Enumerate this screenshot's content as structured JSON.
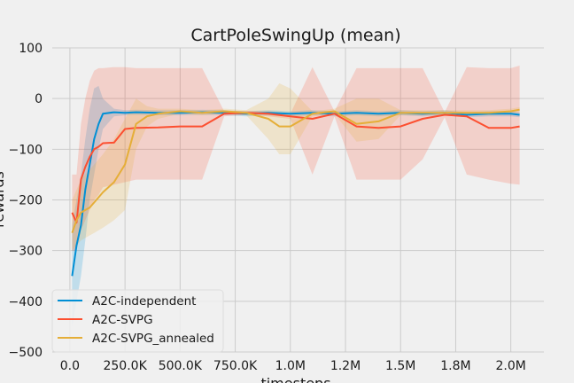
{
  "chart_data": {
    "type": "line",
    "title": "CartPoleSwingUp (mean)",
    "xlabel": "timesteps",
    "ylabel": "rewards",
    "xlim": [
      -80000,
      2150000
    ],
    "ylim": [
      -500,
      100
    ],
    "xticks": [
      0,
      250000,
      500000,
      750000,
      1000000,
      1250000,
      1500000,
      1750000,
      2000000
    ],
    "xtick_labels": [
      "0.0",
      "250.0K",
      "500.0K",
      "750.0K",
      "1.0M",
      "1.2M",
      "1.5M",
      "1.8M",
      "2.0M"
    ],
    "yticks": [
      100,
      0,
      -100,
      -200,
      -300,
      -400,
      -500
    ],
    "ytick_labels": [
      "100",
      "0",
      "−100",
      "−200",
      "−300",
      "−400",
      "−500"
    ],
    "grid": true,
    "legend_position": "lower-left",
    "series": [
      {
        "name": "A2C-independent",
        "color": "#008fd5",
        "x": [
          10000,
          30000,
          50000,
          70000,
          90000,
          110000,
          130000,
          150000,
          200000,
          250000,
          300000,
          400000,
          500000,
          600000,
          700000,
          800000,
          900000,
          1000000,
          1100000,
          1200000,
          1300000,
          1400000,
          1500000,
          1600000,
          1700000,
          1800000,
          1900000,
          2000000,
          2040000
        ],
        "y": [
          -350,
          -290,
          -250,
          -180,
          -130,
          -80,
          -50,
          -30,
          -27,
          -28,
          -27,
          -28,
          -28,
          -27,
          -28,
          -30,
          -28,
          -30,
          -28,
          -30,
          -28,
          -30,
          -28,
          -30,
          -28,
          -32,
          -30,
          -30,
          -32
        ],
        "lower": [
          -450,
          -400,
          -350,
          -280,
          -200,
          -150,
          -100,
          -60,
          -35,
          -33,
          -32,
          -33,
          -33,
          -32,
          -33,
          -35,
          -33,
          -35,
          -33,
          -35,
          -33,
          -35,
          -33,
          -35,
          -33,
          -37,
          -35,
          -35,
          -37
        ],
        "upper": [
          -250,
          -200,
          -150,
          -80,
          -20,
          20,
          25,
          0,
          -20,
          -23,
          -22,
          -23,
          -23,
          -22,
          -23,
          -25,
          -23,
          -25,
          -23,
          -25,
          -23,
          -25,
          -23,
          -25,
          -23,
          -27,
          -25,
          -25,
          -27
        ]
      },
      {
        "name": "A2C-SVPG",
        "color": "#fc4f30",
        "x": [
          10000,
          30000,
          50000,
          70000,
          90000,
          110000,
          130000,
          150000,
          200000,
          250000,
          300000,
          400000,
          500000,
          600000,
          700000,
          800000,
          900000,
          1000000,
          1100000,
          1200000,
          1300000,
          1400000,
          1500000,
          1600000,
          1700000,
          1800000,
          1900000,
          2000000,
          2040000
        ],
        "y": [
          -225,
          -245,
          -160,
          -135,
          -115,
          -100,
          -95,
          -88,
          -87,
          -60,
          -58,
          -57,
          -55,
          -55,
          -30,
          -28,
          -30,
          -35,
          -40,
          -30,
          -55,
          -58,
          -55,
          -40,
          -32,
          -35,
          -58,
          -58,
          -55
        ],
        "lower": [
          -300,
          -300,
          -260,
          -240,
          -220,
          -200,
          -190,
          -175,
          -170,
          -165,
          -160,
          -160,
          -160,
          -160,
          -35,
          -32,
          -35,
          -40,
          -150,
          -35,
          -160,
          -160,
          -160,
          -120,
          -37,
          -150,
          -160,
          -168,
          -170
        ],
        "upper": [
          -150,
          -150,
          -50,
          0,
          35,
          55,
          60,
          60,
          62,
          62,
          60,
          60,
          60,
          60,
          -25,
          -24,
          -25,
          -30,
          62,
          -25,
          60,
          60,
          60,
          60,
          -27,
          62,
          60,
          60,
          65
        ]
      },
      {
        "name": "A2C-SVPG_annealed",
        "color": "#e5ae38",
        "x": [
          10000,
          30000,
          50000,
          70000,
          90000,
          110000,
          130000,
          150000,
          200000,
          250000,
          300000,
          350000,
          400000,
          500000,
          600000,
          700000,
          800000,
          900000,
          950000,
          1000000,
          1100000,
          1200000,
          1300000,
          1400000,
          1500000,
          1600000,
          1700000,
          1800000,
          1900000,
          2000000,
          2040000
        ],
        "y": [
          -265,
          -240,
          -225,
          -220,
          -215,
          -205,
          -195,
          -185,
          -165,
          -130,
          -50,
          -35,
          -30,
          -25,
          -28,
          -25,
          -28,
          -40,
          -55,
          -55,
          -30,
          -25,
          -50,
          -45,
          -28,
          -28,
          -28,
          -28,
          -28,
          -25,
          -22
        ],
        "lower": [
          -300,
          -290,
          -280,
          -275,
          -270,
          -265,
          -260,
          -255,
          -240,
          -220,
          -100,
          -55,
          -40,
          -30,
          -33,
          -30,
          -33,
          -80,
          -110,
          -110,
          -35,
          -30,
          -85,
          -80,
          -33,
          -33,
          -33,
          -33,
          -33,
          -30,
          -27
        ],
        "upper": [
          -200,
          -180,
          -160,
          -150,
          -140,
          -130,
          -120,
          -110,
          -80,
          -40,
          0,
          -15,
          -20,
          -20,
          -23,
          -20,
          -23,
          0,
          30,
          20,
          -25,
          -20,
          0,
          0,
          -23,
          -23,
          -23,
          -23,
          -23,
          -20,
          -17
        ]
      }
    ]
  }
}
